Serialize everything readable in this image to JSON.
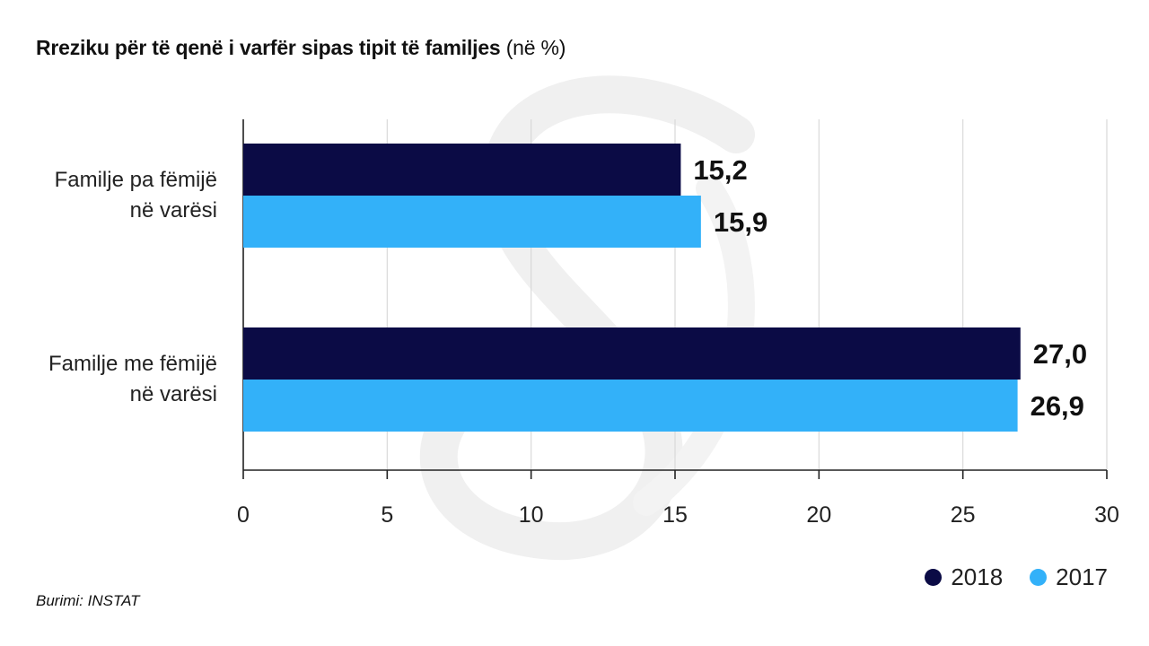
{
  "header": {
    "title": "Rreziku për të qenë i varfër sipas tipit të familjes",
    "title_unit": "(në %)"
  },
  "chart_data": {
    "type": "bar",
    "orientation": "horizontal",
    "categories": [
      [
        "Familje pa fëmijë",
        "në varësi"
      ],
      [
        "Familje me fëmijë",
        "në varësi"
      ]
    ],
    "series": [
      {
        "name": "2018",
        "values": [
          15.2,
          27.0
        ],
        "labels": [
          "15,2",
          "27,0"
        ],
        "color": "#0b0b45"
      },
      {
        "name": "2017",
        "values": [
          15.9,
          26.9
        ],
        "labels": [
          "15,9",
          "26,9"
        ],
        "color": "#33b1f9"
      }
    ],
    "xlim": [
      0,
      30
    ],
    "xticks": [
      0,
      5,
      10,
      15,
      20,
      25,
      30
    ],
    "grid": true,
    "legend_position": "bottom-right"
  },
  "legend": {
    "items": [
      {
        "label": "2018",
        "color": "#0b0b45"
      },
      {
        "label": "2017",
        "color": "#33b1f9"
      }
    ]
  },
  "footer": {
    "source": "Burimi: INSTAT"
  },
  "colors": {
    "gridline": "#d9d9d9",
    "axis": "#222222",
    "watermark": "#f1f1f1"
  },
  "icons": {
    "watermark": "publisher-logo-watermark"
  }
}
